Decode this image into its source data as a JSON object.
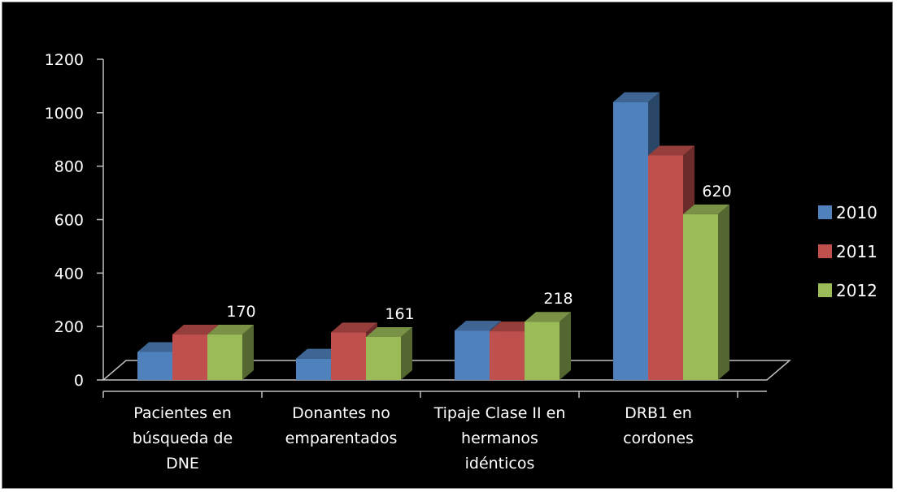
{
  "chart_data": {
    "type": "bar",
    "style": "3d-clustered-column",
    "categories": [
      [
        "Pacientes en",
        "búsqueda de",
        "DNE"
      ],
      [
        "Donantes no",
        "emparentados"
      ],
      [
        "Tipaje Clase II en",
        "hermanos",
        "idénticos"
      ],
      [
        "DRB1 en",
        "cordones"
      ]
    ],
    "series": [
      {
        "name": "2010",
        "color": "#4f81bd",
        "values": [
          105,
          80,
          185,
          1040
        ]
      },
      {
        "name": "2011",
        "color": "#c0504d",
        "values": [
          170,
          178,
          182,
          840
        ]
      },
      {
        "name": "2012",
        "color": "#9bbb59",
        "values": [
          170,
          161,
          218,
          620
        ]
      }
    ],
    "data_labels": [
      {
        "series": 2,
        "category": 0,
        "text": "170"
      },
      {
        "series": 2,
        "category": 1,
        "text": "161"
      },
      {
        "series": 2,
        "category": 2,
        "text": "218"
      },
      {
        "series": 2,
        "category": 3,
        "text": "620"
      }
    ],
    "ylim": [
      0,
      1200
    ],
    "yticks": [
      0,
      200,
      400,
      600,
      800,
      1000,
      1200
    ],
    "legend_position": "right",
    "background": "#000000",
    "grid": false
  }
}
